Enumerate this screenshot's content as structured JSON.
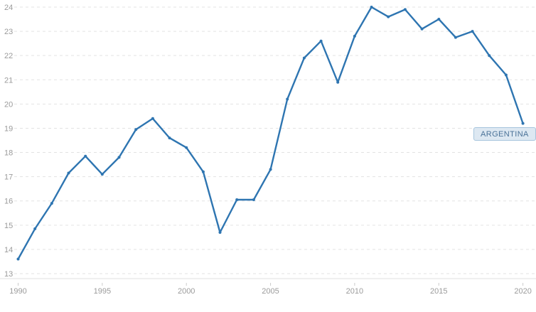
{
  "chart_data": {
    "type": "line",
    "title": "",
    "xlabel": "",
    "ylabel": "",
    "xlim": [
      1990,
      2020
    ],
    "ylim": [
      13,
      24
    ],
    "xticks": [
      1990,
      1995,
      2000,
      2005,
      2010,
      2015,
      2020
    ],
    "yticks": [
      13,
      14,
      15,
      16,
      17,
      18,
      19,
      20,
      21,
      22,
      23,
      24
    ],
    "grid": "horizontal-dashed",
    "legend_position": "end-of-line-label",
    "end_label": "ARGENTINA",
    "series": [
      {
        "name": "ARGENTINA",
        "color": "#2e75b1",
        "marker": "dot",
        "x": [
          1990,
          1991,
          1992,
          1993,
          1994,
          1995,
          1996,
          1997,
          1998,
          1999,
          2000,
          2001,
          2002,
          2003,
          2004,
          2005,
          2006,
          2007,
          2008,
          2009,
          2010,
          2011,
          2012,
          2013,
          2014,
          2015,
          2016,
          2017,
          2018,
          2019,
          2020
        ],
        "values": [
          13.6,
          14.85,
          15.9,
          17.15,
          17.85,
          17.1,
          17.8,
          18.95,
          19.4,
          18.6,
          18.2,
          17.2,
          14.7,
          16.05,
          16.05,
          17.3,
          20.2,
          21.9,
          22.6,
          20.9,
          22.8,
          24.0,
          23.6,
          23.9,
          23.1,
          23.5,
          22.75,
          23.0,
          22.0,
          21.2,
          19.2
        ]
      }
    ],
    "colors": {
      "line": "#2e75b1",
      "gridline": "#e3e3e3",
      "axis_line": "#e2e2e2",
      "tick_label": "#9b9b9b",
      "end_label_bg": "#dde8f2",
      "end_label_border": "#a6c5dd",
      "end_label_text": "#4a7298",
      "background": "#ffffff"
    }
  }
}
